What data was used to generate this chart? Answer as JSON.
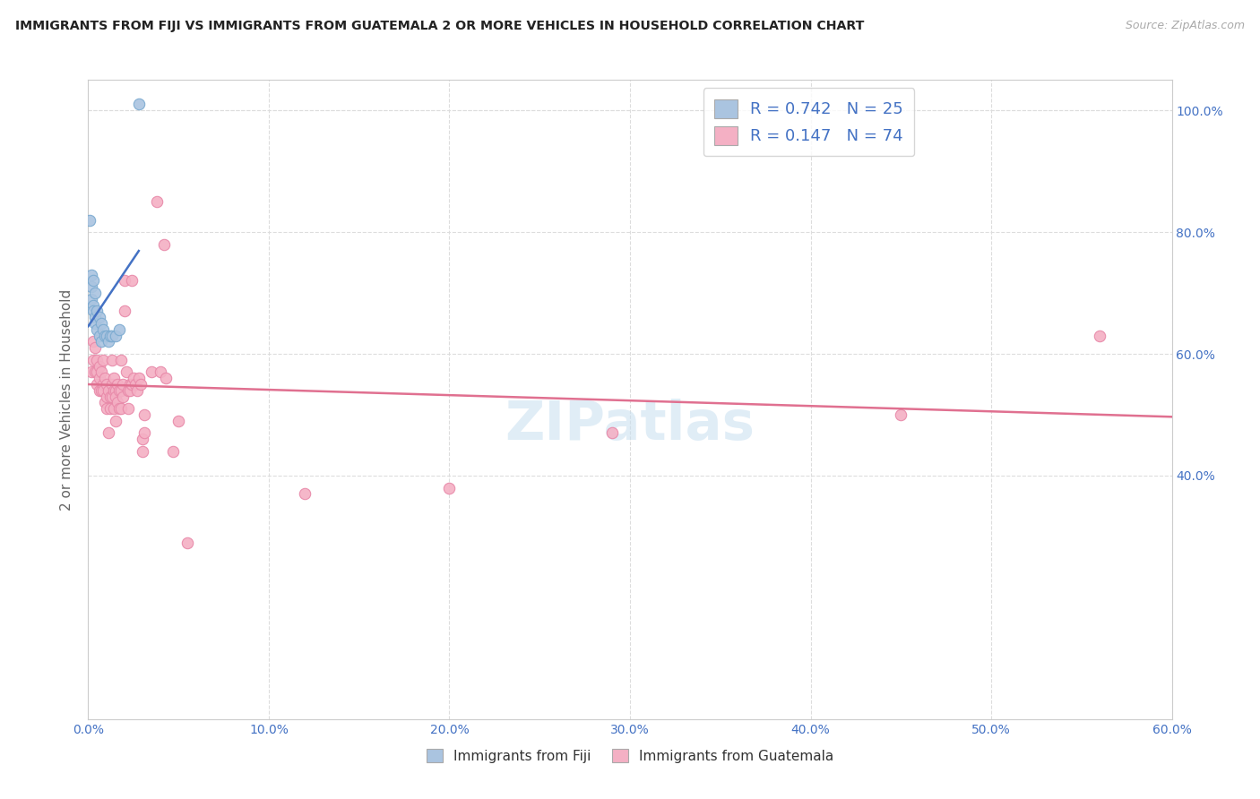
{
  "title": "IMMIGRANTS FROM FIJI VS IMMIGRANTS FROM GUATEMALA 2 OR MORE VEHICLES IN HOUSEHOLD CORRELATION CHART",
  "source": "Source: ZipAtlas.com",
  "ylabel": "2 or more Vehicles in Household",
  "xlim": [
    0.0,
    0.6
  ],
  "ylim": [
    0.0,
    1.05
  ],
  "fiji_color": "#aac4e0",
  "fiji_edge": "#7aaad0",
  "fiji_line_color": "#4472c4",
  "guatemala_color": "#f4b0c4",
  "guatemala_edge": "#e888a8",
  "guatemala_line_color": "#e07090",
  "fiji_R": 0.742,
  "fiji_N": 25,
  "guatemala_R": 0.147,
  "guatemala_N": 74,
  "fiji_points": [
    [
      0.001,
      0.82
    ],
    [
      0.002,
      0.71
    ],
    [
      0.002,
      0.73
    ],
    [
      0.002,
      0.69
    ],
    [
      0.003,
      0.72
    ],
    [
      0.003,
      0.68
    ],
    [
      0.003,
      0.67
    ],
    [
      0.004,
      0.7
    ],
    [
      0.004,
      0.66
    ],
    [
      0.004,
      0.65
    ],
    [
      0.005,
      0.67
    ],
    [
      0.005,
      0.64
    ],
    [
      0.006,
      0.66
    ],
    [
      0.006,
      0.63
    ],
    [
      0.007,
      0.65
    ],
    [
      0.007,
      0.62
    ],
    [
      0.008,
      0.64
    ],
    [
      0.009,
      0.63
    ],
    [
      0.01,
      0.63
    ],
    [
      0.011,
      0.62
    ],
    [
      0.012,
      0.63
    ],
    [
      0.013,
      0.63
    ],
    [
      0.015,
      0.63
    ],
    [
      0.017,
      0.64
    ],
    [
      0.028,
      1.01
    ]
  ],
  "guatemala_points": [
    [
      0.002,
      0.57
    ],
    [
      0.003,
      0.62
    ],
    [
      0.003,
      0.59
    ],
    [
      0.004,
      0.61
    ],
    [
      0.004,
      0.57
    ],
    [
      0.005,
      0.59
    ],
    [
      0.005,
      0.57
    ],
    [
      0.005,
      0.55
    ],
    [
      0.006,
      0.56
    ],
    [
      0.006,
      0.58
    ],
    [
      0.006,
      0.54
    ],
    [
      0.007,
      0.57
    ],
    [
      0.007,
      0.54
    ],
    [
      0.008,
      0.59
    ],
    [
      0.008,
      0.55
    ],
    [
      0.008,
      0.54
    ],
    [
      0.009,
      0.56
    ],
    [
      0.009,
      0.52
    ],
    [
      0.01,
      0.55
    ],
    [
      0.01,
      0.53
    ],
    [
      0.01,
      0.51
    ],
    [
      0.011,
      0.54
    ],
    [
      0.011,
      0.47
    ],
    [
      0.012,
      0.53
    ],
    [
      0.012,
      0.51
    ],
    [
      0.013,
      0.59
    ],
    [
      0.013,
      0.55
    ],
    [
      0.013,
      0.53
    ],
    [
      0.014,
      0.56
    ],
    [
      0.014,
      0.54
    ],
    [
      0.014,
      0.51
    ],
    [
      0.015,
      0.54
    ],
    [
      0.015,
      0.53
    ],
    [
      0.015,
      0.49
    ],
    [
      0.016,
      0.55
    ],
    [
      0.016,
      0.52
    ],
    [
      0.017,
      0.54
    ],
    [
      0.017,
      0.51
    ],
    [
      0.018,
      0.59
    ],
    [
      0.018,
      0.54
    ],
    [
      0.018,
      0.51
    ],
    [
      0.019,
      0.55
    ],
    [
      0.019,
      0.53
    ],
    [
      0.02,
      0.72
    ],
    [
      0.02,
      0.67
    ],
    [
      0.021,
      0.57
    ],
    [
      0.022,
      0.54
    ],
    [
      0.022,
      0.51
    ],
    [
      0.023,
      0.55
    ],
    [
      0.023,
      0.54
    ],
    [
      0.024,
      0.72
    ],
    [
      0.024,
      0.55
    ],
    [
      0.025,
      0.56
    ],
    [
      0.026,
      0.55
    ],
    [
      0.027,
      0.54
    ],
    [
      0.028,
      0.56
    ],
    [
      0.029,
      0.55
    ],
    [
      0.03,
      0.46
    ],
    [
      0.03,
      0.44
    ],
    [
      0.031,
      0.5
    ],
    [
      0.031,
      0.47
    ],
    [
      0.035,
      0.57
    ],
    [
      0.038,
      0.85
    ],
    [
      0.04,
      0.57
    ],
    [
      0.042,
      0.78
    ],
    [
      0.043,
      0.56
    ],
    [
      0.047,
      0.44
    ],
    [
      0.05,
      0.49
    ],
    [
      0.055,
      0.29
    ],
    [
      0.12,
      0.37
    ],
    [
      0.2,
      0.38
    ],
    [
      0.29,
      0.47
    ],
    [
      0.45,
      0.5
    ],
    [
      0.56,
      0.63
    ]
  ]
}
